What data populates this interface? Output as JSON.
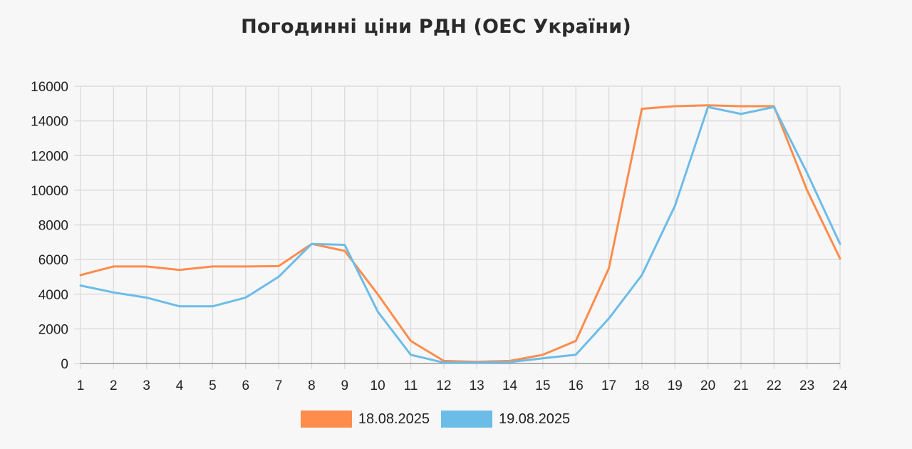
{
  "chart_data": {
    "type": "line",
    "title": "Погодинні ціни РДН (ОЕС України)",
    "xlabel": "",
    "ylabel": "",
    "x": [
      "1",
      "2",
      "3",
      "4",
      "5",
      "6",
      "7",
      "8",
      "9",
      "10",
      "11",
      "12",
      "13",
      "14",
      "15",
      "16",
      "17",
      "18",
      "19",
      "20",
      "21",
      "22",
      "23",
      "24"
    ],
    "ylim": [
      0,
      16000
    ],
    "yticks": [
      0,
      2000,
      4000,
      6000,
      8000,
      10000,
      12000,
      14000,
      16000
    ],
    "grid": true,
    "legend_position": "bottom-center",
    "series": [
      {
        "name": "18.08.2025",
        "color": "#fe8c4c",
        "values": [
          5100,
          5600,
          5600,
          5400,
          5600,
          5600,
          5620,
          6900,
          6500,
          4000,
          1300,
          150,
          100,
          150,
          500,
          1300,
          5500,
          14700,
          14850,
          14900,
          14850,
          14850,
          10000,
          6050
        ]
      },
      {
        "name": "19.08.2025",
        "color": "#6cbce8",
        "values": [
          4500,
          4100,
          3800,
          3300,
          3300,
          3800,
          5000,
          6900,
          6850,
          3000,
          500,
          50,
          50,
          80,
          300,
          500,
          2600,
          5100,
          9100,
          14800,
          14400,
          14800,
          11000,
          6900
        ]
      }
    ]
  }
}
